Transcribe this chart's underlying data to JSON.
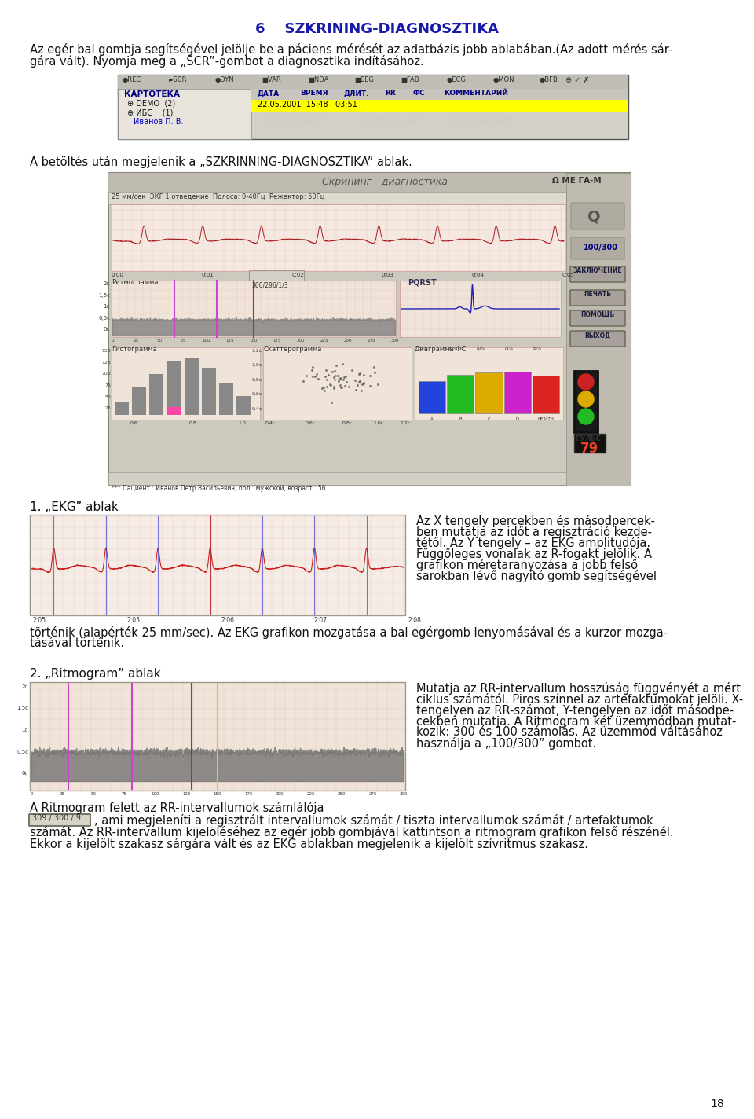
{
  "title": "6    SZKRINING-DIAGNOSZTIKA",
  "title_color": "#1a1aaa",
  "page_bg": "#ffffff",
  "page_number": "18",
  "para1_line1": "Az egér bal gombja segítségével jelölje be a páciens mérését az adatbázis jobb ablabában.(Az adott mérés sár-",
  "para1_line2": "gára vált). Nyomja meg a „SCR”-gombot a diagnosztika indításához.",
  "caption1": "A betöltés után megjelenik a „SZKRINNING-DIAGNOSZTIKA” ablak.",
  "section1_title": "1. „EKG” ablak",
  "ekg_caption_lines": [
    "Az X tengely percekben és másodpercek-",
    "ben mutatja az időt a regisztráció kezde-",
    "tétől. Az Y tengely – az EKG amplitudója.",
    "Függőleges vonalak az R-fogakt jelölik. A",
    "grafikon méretaranyozása a jobb felső",
    "sarokban lévő nagyító gomb segítségével"
  ],
  "ekg_below_line1": "történik (alapérték 25 mm/sec). Az EKG grafikon mozgatása a bal egérgomb lenyomásával és a kurzor mozga-",
  "ekg_below_line2": "tásával történik.",
  "section2_title": "2. „Ritmogram” ablak",
  "ritmogram_caption_lines": [
    "Mutatja az RR-intervallum hosszúság függvényét a mért",
    "ciklus számától. Piros színnel az artefaktumokat jelöli. X-",
    "tengelyen az RR-számot, Y-tengelyen az időt másodpe-",
    "cekben mutatja. A Ritmogram két üzemmódban mutat-",
    "kozik: 300 és 100 számolás. Az üzemmód váltásához",
    "használja a „100/300” gombot."
  ],
  "ritmogram_below_text1": "A Ritmogram felett az RR-intervallumok számlálója",
  "ritmogram_counter": "309 / 300 / 9",
  "ritmogram_below_line1": ", ami megjeleníti a regisztrált intervallumok számát / tiszta intervallumok számát / artefaktumok",
  "ritmogram_below_line2": "számát. Az RR-intervallum kijelöléséhez az egér jobb gombjával kattintson a ritmogram grafikon felső részénél.",
  "ritmogram_below_line3": "Ekkor a kijelölt szakasz sárgára vált és az EKG ablakban megjelenik a kijelölt szívritmus szakasz.",
  "body_fontsize": 10.5,
  "section_fontsize": 11,
  "title_fontsize": 13
}
